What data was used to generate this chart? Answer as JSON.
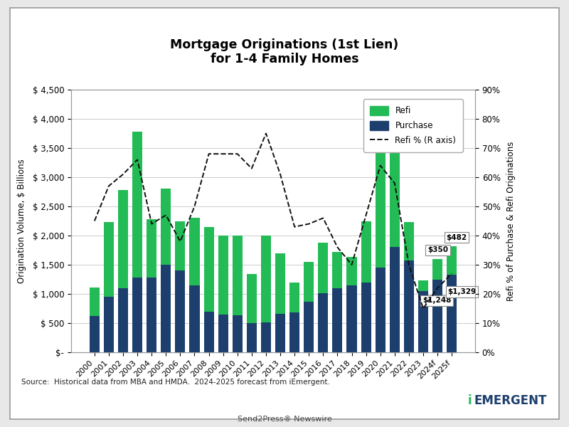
{
  "years": [
    "2000",
    "2001",
    "2002",
    "2003",
    "2004",
    "2005",
    "2006",
    "2007",
    "2008",
    "2009",
    "2010",
    "2011",
    "2012",
    "2013",
    "2014",
    "2015",
    "2016",
    "2017",
    "2018",
    "2019",
    "2020",
    "2021",
    "2022",
    "2023",
    "2024f",
    "2025f"
  ],
  "purchase": [
    620,
    950,
    1100,
    1280,
    1280,
    1500,
    1400,
    1150,
    700,
    650,
    640,
    500,
    510,
    660,
    680,
    870,
    1010,
    1100,
    1150,
    1200,
    1450,
    1800,
    1570,
    1050,
    1248,
    1329
  ],
  "refi": [
    490,
    1280,
    1680,
    2500,
    1000,
    1300,
    850,
    1150,
    1450,
    1350,
    1360,
    840,
    1490,
    1040,
    520,
    680,
    870,
    620,
    480,
    1050,
    2550,
    2500,
    660,
    180,
    350,
    482
  ],
  "refi_pct": [
    45,
    57,
    61,
    66,
    44,
    47,
    38,
    50,
    68,
    68,
    68,
    63,
    75,
    61,
    43,
    44,
    46,
    36,
    30,
    47,
    64,
    58,
    30,
    15,
    22,
    27
  ],
  "purchase_color": "#1c3f6e",
  "refi_color": "#22bb55",
  "line_color": "#111111",
  "title_line1": "Mortgage Originations (1st Lien)",
  "title_line2": "for 1-4 Family Homes",
  "ylabel_left": "Origination Volume, $ Billions",
  "ylabel_right": "Refi % of Purchase & Refi Originations",
  "ylim_left": [
    0,
    4500
  ],
  "ylim_right": [
    0,
    90
  ],
  "yticks_left": [
    0,
    500,
    1000,
    1500,
    2000,
    2500,
    3000,
    3500,
    4000,
    4500
  ],
  "yticks_right": [
    0,
    10,
    20,
    30,
    40,
    50,
    60,
    70,
    80,
    90
  ],
  "source_text": "Source:  Historical data from MBA and HMDA.  2024-2025 forecast from iEmergent.",
  "annotation_2024_purchase": "$1,248",
  "annotation_2025_purchase": "$1,329",
  "annotation_2024_refi": "$350",
  "annotation_2025_refi": "$482",
  "background_color": "#ffffff",
  "outer_bg": "#e8e8e8",
  "border_color": "#999999"
}
